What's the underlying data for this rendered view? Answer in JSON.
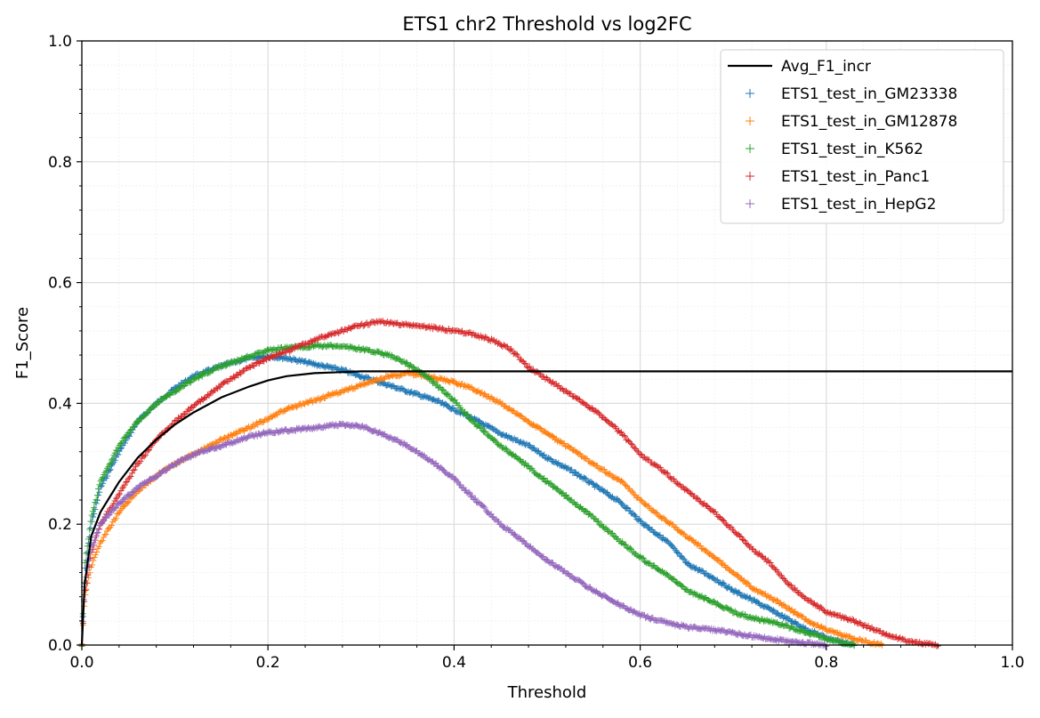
{
  "chart_data": {
    "type": "scatter",
    "title": "ETS1 chr2 Threshold vs log2FC",
    "xlabel": "Threshold",
    "ylabel": "F1_Score",
    "xlim": [
      0.0,
      1.0
    ],
    "ylim": [
      0.0,
      1.0
    ],
    "xticks": [
      "0.0",
      "0.2",
      "0.4",
      "0.6",
      "0.8",
      "1.0"
    ],
    "yticks": [
      "0.0",
      "0.2",
      "0.4",
      "0.6",
      "0.8",
      "1.0"
    ],
    "grid": true,
    "minor_grid": true,
    "legend_position": "top-right",
    "series": [
      {
        "name": "Avg_F1_incr",
        "kind": "line",
        "color": "#000000",
        "points": [
          [
            0.0,
            0.0
          ],
          [
            0.003,
            0.1
          ],
          [
            0.01,
            0.18
          ],
          [
            0.02,
            0.22
          ],
          [
            0.04,
            0.27
          ],
          [
            0.06,
            0.31
          ],
          [
            0.08,
            0.34
          ],
          [
            0.1,
            0.365
          ],
          [
            0.12,
            0.385
          ],
          [
            0.15,
            0.41
          ],
          [
            0.18,
            0.428
          ],
          [
            0.2,
            0.438
          ],
          [
            0.22,
            0.445
          ],
          [
            0.25,
            0.45
          ],
          [
            0.3,
            0.453
          ],
          [
            0.4,
            0.453
          ],
          [
            0.6,
            0.453
          ],
          [
            0.8,
            0.453
          ],
          [
            1.0,
            0.453
          ]
        ]
      },
      {
        "name": "ETS1_test_in_GM23338",
        "kind": "marker",
        "color": "#1f77b4",
        "points": [
          [
            0.0,
            0.0
          ],
          [
            0.003,
            0.12
          ],
          [
            0.01,
            0.2
          ],
          [
            0.02,
            0.26
          ],
          [
            0.04,
            0.32
          ],
          [
            0.06,
            0.37
          ],
          [
            0.08,
            0.4
          ],
          [
            0.1,
            0.425
          ],
          [
            0.12,
            0.445
          ],
          [
            0.15,
            0.462
          ],
          [
            0.18,
            0.475
          ],
          [
            0.2,
            0.478
          ],
          [
            0.22,
            0.475
          ],
          [
            0.25,
            0.465
          ],
          [
            0.28,
            0.455
          ],
          [
            0.3,
            0.445
          ],
          [
            0.33,
            0.43
          ],
          [
            0.35,
            0.42
          ],
          [
            0.38,
            0.405
          ],
          [
            0.4,
            0.39
          ],
          [
            0.42,
            0.375
          ],
          [
            0.45,
            0.35
          ],
          [
            0.48,
            0.33
          ],
          [
            0.5,
            0.31
          ],
          [
            0.53,
            0.285
          ],
          [
            0.55,
            0.265
          ],
          [
            0.58,
            0.235
          ],
          [
            0.6,
            0.205
          ],
          [
            0.63,
            0.17
          ],
          [
            0.65,
            0.135
          ],
          [
            0.68,
            0.11
          ],
          [
            0.7,
            0.09
          ],
          [
            0.72,
            0.075
          ],
          [
            0.75,
            0.05
          ],
          [
            0.78,
            0.025
          ],
          [
            0.8,
            0.012
          ],
          [
            0.83,
            0.0
          ]
        ]
      },
      {
        "name": "ETS1_test_in_GM12878",
        "kind": "marker",
        "color": "#ff7f0e",
        "points": [
          [
            0.0,
            0.0
          ],
          [
            0.003,
            0.08
          ],
          [
            0.01,
            0.13
          ],
          [
            0.02,
            0.17
          ],
          [
            0.04,
            0.22
          ],
          [
            0.06,
            0.255
          ],
          [
            0.08,
            0.28
          ],
          [
            0.1,
            0.3
          ],
          [
            0.12,
            0.315
          ],
          [
            0.15,
            0.34
          ],
          [
            0.18,
            0.36
          ],
          [
            0.2,
            0.375
          ],
          [
            0.22,
            0.39
          ],
          [
            0.25,
            0.405
          ],
          [
            0.28,
            0.42
          ],
          [
            0.3,
            0.43
          ],
          [
            0.33,
            0.445
          ],
          [
            0.35,
            0.45
          ],
          [
            0.37,
            0.445
          ],
          [
            0.4,
            0.435
          ],
          [
            0.42,
            0.425
          ],
          [
            0.45,
            0.4
          ],
          [
            0.48,
            0.37
          ],
          [
            0.5,
            0.35
          ],
          [
            0.53,
            0.32
          ],
          [
            0.55,
            0.3
          ],
          [
            0.58,
            0.27
          ],
          [
            0.6,
            0.24
          ],
          [
            0.62,
            0.215
          ],
          [
            0.65,
            0.18
          ],
          [
            0.68,
            0.145
          ],
          [
            0.7,
            0.12
          ],
          [
            0.72,
            0.095
          ],
          [
            0.75,
            0.07
          ],
          [
            0.78,
            0.04
          ],
          [
            0.8,
            0.025
          ],
          [
            0.83,
            0.01
          ],
          [
            0.86,
            0.0
          ]
        ]
      },
      {
        "name": "ETS1_test_in_K562",
        "kind": "marker",
        "color": "#2ca02c",
        "points": [
          [
            0.0,
            0.0
          ],
          [
            0.003,
            0.13
          ],
          [
            0.01,
            0.21
          ],
          [
            0.02,
            0.27
          ],
          [
            0.04,
            0.33
          ],
          [
            0.06,
            0.37
          ],
          [
            0.08,
            0.4
          ],
          [
            0.1,
            0.42
          ],
          [
            0.12,
            0.44
          ],
          [
            0.15,
            0.462
          ],
          [
            0.18,
            0.478
          ],
          [
            0.2,
            0.488
          ],
          [
            0.22,
            0.492
          ],
          [
            0.25,
            0.495
          ],
          [
            0.28,
            0.495
          ],
          [
            0.3,
            0.49
          ],
          [
            0.33,
            0.48
          ],
          [
            0.35,
            0.465
          ],
          [
            0.37,
            0.445
          ],
          [
            0.4,
            0.405
          ],
          [
            0.42,
            0.37
          ],
          [
            0.45,
            0.33
          ],
          [
            0.48,
            0.295
          ],
          [
            0.5,
            0.27
          ],
          [
            0.53,
            0.235
          ],
          [
            0.55,
            0.21
          ],
          [
            0.58,
            0.17
          ],
          [
            0.6,
            0.145
          ],
          [
            0.63,
            0.115
          ],
          [
            0.65,
            0.09
          ],
          [
            0.68,
            0.07
          ],
          [
            0.7,
            0.055
          ],
          [
            0.72,
            0.045
          ],
          [
            0.75,
            0.035
          ],
          [
            0.78,
            0.02
          ],
          [
            0.8,
            0.01
          ],
          [
            0.83,
            0.0
          ]
        ]
      },
      {
        "name": "ETS1_test_in_Panc1",
        "kind": "marker",
        "color": "#d62728",
        "points": [
          [
            0.0,
            0.0
          ],
          [
            0.003,
            0.08
          ],
          [
            0.01,
            0.15
          ],
          [
            0.02,
            0.2
          ],
          [
            0.04,
            0.25
          ],
          [
            0.06,
            0.3
          ],
          [
            0.08,
            0.34
          ],
          [
            0.1,
            0.37
          ],
          [
            0.12,
            0.395
          ],
          [
            0.15,
            0.43
          ],
          [
            0.18,
            0.46
          ],
          [
            0.2,
            0.475
          ],
          [
            0.22,
            0.485
          ],
          [
            0.25,
            0.505
          ],
          [
            0.28,
            0.52
          ],
          [
            0.3,
            0.53
          ],
          [
            0.32,
            0.535
          ],
          [
            0.35,
            0.53
          ],
          [
            0.38,
            0.525
          ],
          [
            0.4,
            0.52
          ],
          [
            0.42,
            0.515
          ],
          [
            0.44,
            0.505
          ],
          [
            0.46,
            0.49
          ],
          [
            0.48,
            0.46
          ],
          [
            0.5,
            0.44
          ],
          [
            0.52,
            0.42
          ],
          [
            0.55,
            0.39
          ],
          [
            0.58,
            0.35
          ],
          [
            0.6,
            0.315
          ],
          [
            0.62,
            0.295
          ],
          [
            0.65,
            0.255
          ],
          [
            0.68,
            0.22
          ],
          [
            0.7,
            0.19
          ],
          [
            0.72,
            0.16
          ],
          [
            0.74,
            0.135
          ],
          [
            0.76,
            0.1
          ],
          [
            0.78,
            0.075
          ],
          [
            0.8,
            0.055
          ],
          [
            0.83,
            0.04
          ],
          [
            0.86,
            0.02
          ],
          [
            0.89,
            0.005
          ],
          [
            0.92,
            0.0
          ]
        ]
      },
      {
        "name": "ETS1_test_in_HepG2",
        "kind": "marker",
        "color": "#9467bd",
        "points": [
          [
            0.0,
            0.0
          ],
          [
            0.003,
            0.1
          ],
          [
            0.01,
            0.16
          ],
          [
            0.02,
            0.2
          ],
          [
            0.04,
            0.235
          ],
          [
            0.06,
            0.26
          ],
          [
            0.08,
            0.28
          ],
          [
            0.1,
            0.3
          ],
          [
            0.12,
            0.315
          ],
          [
            0.15,
            0.33
          ],
          [
            0.18,
            0.345
          ],
          [
            0.2,
            0.352
          ],
          [
            0.22,
            0.355
          ],
          [
            0.25,
            0.36
          ],
          [
            0.28,
            0.365
          ],
          [
            0.3,
            0.362
          ],
          [
            0.32,
            0.352
          ],
          [
            0.35,
            0.33
          ],
          [
            0.38,
            0.3
          ],
          [
            0.4,
            0.275
          ],
          [
            0.42,
            0.245
          ],
          [
            0.45,
            0.2
          ],
          [
            0.48,
            0.165
          ],
          [
            0.5,
            0.14
          ],
          [
            0.53,
            0.11
          ],
          [
            0.55,
            0.09
          ],
          [
            0.58,
            0.065
          ],
          [
            0.6,
            0.05
          ],
          [
            0.62,
            0.04
          ],
          [
            0.65,
            0.03
          ],
          [
            0.68,
            0.025
          ],
          [
            0.7,
            0.02
          ],
          [
            0.72,
            0.015
          ],
          [
            0.75,
            0.008
          ],
          [
            0.78,
            0.003
          ],
          [
            0.8,
            0.0
          ]
        ]
      }
    ]
  }
}
